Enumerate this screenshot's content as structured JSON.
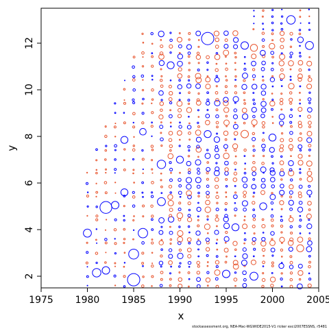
{
  "chart_data": {
    "type": "scatter",
    "title": "",
    "xlabel": "x",
    "ylabel": "y",
    "xlim": [
      1975,
      2005
    ],
    "ylim": [
      1.5,
      13.5
    ],
    "xticks": [
      1975,
      1980,
      1985,
      1990,
      1995,
      2000,
      2005
    ],
    "yticks": [
      2,
      4,
      6,
      8,
      10,
      12
    ],
    "grid": false,
    "legend": "none",
    "marker": "open-circle, radius proportional to |residual|",
    "colors": {
      "positive": "#0000ff",
      "negative": "#e8552e"
    },
    "first_year_by_age": {
      "2": 1980,
      "3": 1980,
      "4": 1980,
      "5": 1980,
      "6": 1980,
      "7": 1981,
      "8": 1982,
      "9": 1983,
      "10": 1984,
      "11": 1985,
      "12": 1986,
      "13": 1998
    },
    "last_year": 2004,
    "highlighted_points": [
      {
        "x": 1993,
        "y": 12.2,
        "sign": "positive",
        "size": 1.0
      },
      {
        "x": 2002,
        "y": 13.0,
        "sign": "positive",
        "size": 0.6
      },
      {
        "x": 2004,
        "y": 11.9,
        "sign": "positive",
        "size": 0.55
      },
      {
        "x": 1997,
        "y": 11.9,
        "sign": "positive",
        "size": 0.5
      },
      {
        "x": 1998,
        "y": 11.8,
        "sign": "negative",
        "size": 0.45
      },
      {
        "x": 1989,
        "y": 11.05,
        "sign": "positive",
        "size": 0.45
      },
      {
        "x": 1980,
        "y": 3.85,
        "sign": "positive",
        "size": 0.55
      },
      {
        "x": 1982,
        "y": 4.95,
        "sign": "positive",
        "size": 0.95
      },
      {
        "x": 1983,
        "y": 5.05,
        "sign": "positive",
        "size": 0.5
      },
      {
        "x": 1984,
        "y": 5.6,
        "sign": "positive",
        "size": 0.45
      },
      {
        "x": 1986,
        "y": 3.85,
        "sign": "positive",
        "size": 0.7
      },
      {
        "x": 1985,
        "y": 1.85,
        "sign": "positive",
        "size": 1.0
      },
      {
        "x": 1985,
        "y": 2.95,
        "sign": "positive",
        "size": 0.75
      },
      {
        "x": 1981,
        "y": 2.15,
        "sign": "positive",
        "size": 0.6
      },
      {
        "x": 1982,
        "y": 2.25,
        "sign": "positive",
        "size": 0.5
      },
      {
        "x": 1988,
        "y": 6.8,
        "sign": "positive",
        "size": 0.6
      },
      {
        "x": 1988,
        "y": 5.2,
        "sign": "positive",
        "size": 0.55
      },
      {
        "x": 1984,
        "y": 7.85,
        "sign": "positive",
        "size": 0.45
      },
      {
        "x": 1986,
        "y": 8.2,
        "sign": "positive",
        "size": 0.4
      },
      {
        "x": 2003,
        "y": 3.2,
        "sign": "negative",
        "size": 0.45
      },
      {
        "x": 1998,
        "y": 2.0,
        "sign": "positive",
        "size": 0.55
      },
      {
        "x": 1995,
        "y": 2.1,
        "sign": "positive",
        "size": 0.5
      },
      {
        "x": 1997,
        "y": 8.1,
        "sign": "negative",
        "size": 0.5
      },
      {
        "x": 1990,
        "y": 7.0,
        "sign": "positive",
        "size": 0.45
      },
      {
        "x": 1993,
        "y": 8.1,
        "sign": "positive",
        "size": 0.45
      },
      {
        "x": 2000,
        "y": 7.95,
        "sign": "positive",
        "size": 0.45
      },
      {
        "x": 1996,
        "y": 4.1,
        "sign": "positive",
        "size": 0.45
      },
      {
        "x": 1999,
        "y": 5.0,
        "sign": "positive",
        "size": 0.45
      }
    ]
  },
  "footer": {
    "credit": "stockassessment.org, NEA-Mac-WGWIDE2015-V1 ricker exci2007ESSNS, r5481"
  }
}
